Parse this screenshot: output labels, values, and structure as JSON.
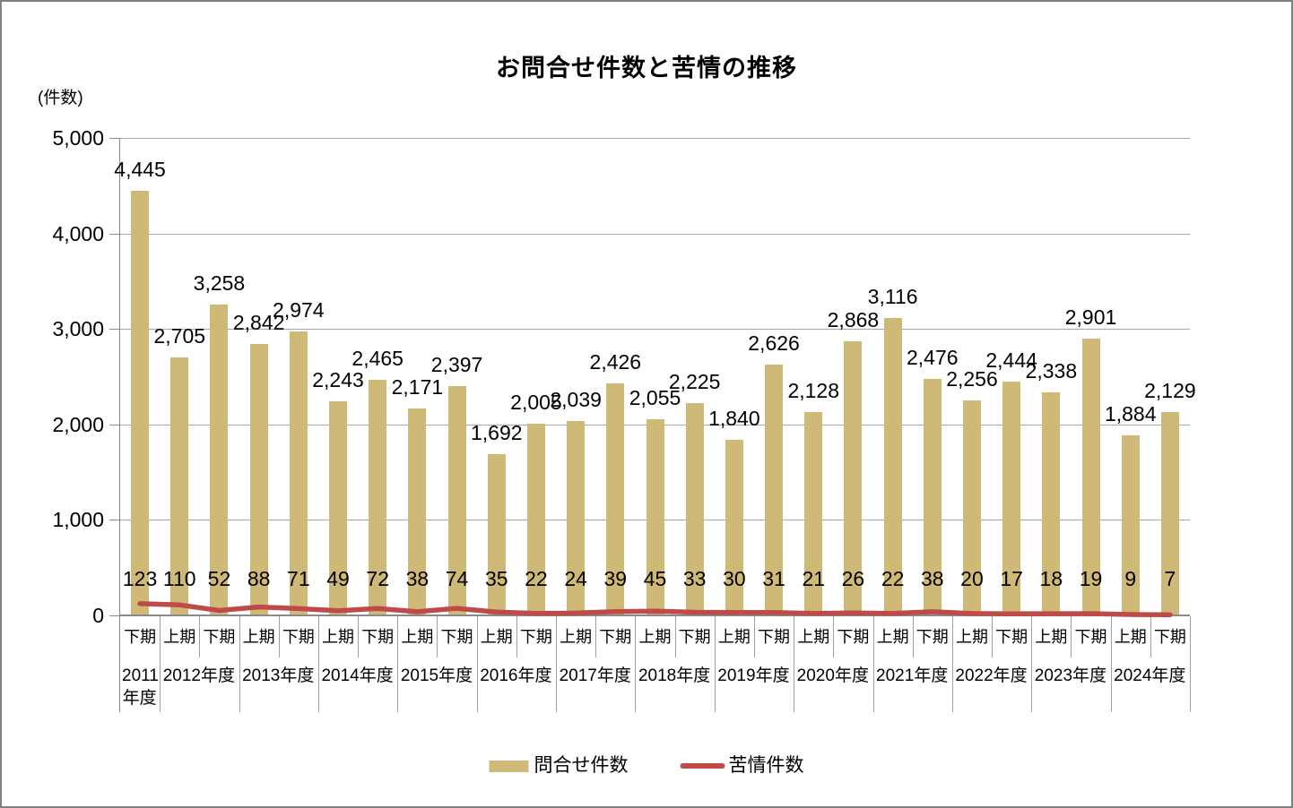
{
  "title": "お問合せ件数と苦情の推移",
  "y_axis_unit": "(件数)",
  "legend": {
    "bar_label": "問合せ件数",
    "line_label": "苦情件数"
  },
  "colors": {
    "bar": "#CFB977",
    "line": "#BE4B48",
    "gridline": "#A6A6A6",
    "axis": "#8A8A8A",
    "category_line": "#A0A0A0"
  },
  "chart_data": {
    "type": "bar",
    "combo": "bar+line",
    "title": "お問合せ件数と苦情の推移",
    "ylabel": "(件数)",
    "ylim": [
      0,
      5000
    ],
    "ytick_interval": 1000,
    "grid": true,
    "legend_position": "bottom",
    "x_periods": [
      "下期",
      "上期",
      "下期",
      "上期",
      "下期",
      "上期",
      "下期",
      "上期",
      "下期",
      "上期",
      "下期",
      "上期",
      "下期",
      "上期",
      "下期",
      "上期",
      "下期",
      "上期",
      "下期",
      "上期",
      "下期",
      "上期",
      "下期",
      "上期",
      "下期",
      "上期",
      "下期"
    ],
    "x_year_groups": [
      {
        "label": "2011年度",
        "span": 1
      },
      {
        "label": "2012年度",
        "span": 2
      },
      {
        "label": "2013年度",
        "span": 2
      },
      {
        "label": "2014年度",
        "span": 2
      },
      {
        "label": "2015年度",
        "span": 2
      },
      {
        "label": "2016年度",
        "span": 2
      },
      {
        "label": "2017年度",
        "span": 2
      },
      {
        "label": "2018年度",
        "span": 2
      },
      {
        "label": "2019年度",
        "span": 2
      },
      {
        "label": "2020年度",
        "span": 2
      },
      {
        "label": "2021年度",
        "span": 2
      },
      {
        "label": "2022年度",
        "span": 2
      },
      {
        "label": "2023年度",
        "span": 2
      },
      {
        "label": "2024年度",
        "span": 2
      }
    ],
    "series": [
      {
        "name": "問合せ件数",
        "type": "bar",
        "color": "#CFB977",
        "values": [
          4445,
          2705,
          3258,
          2842,
          2974,
          2243,
          2465,
          2171,
          2397,
          1692,
          2005,
          2039,
          2426,
          2055,
          2225,
          1840,
          2626,
          2128,
          2868,
          3116,
          2476,
          2256,
          2444,
          2338,
          2901,
          1884,
          2129
        ]
      },
      {
        "name": "苦情件数",
        "type": "line",
        "color": "#BE4B48",
        "values": [
          123,
          110,
          52,
          88,
          71,
          49,
          72,
          38,
          74,
          35,
          22,
          24,
          39,
          45,
          33,
          30,
          31,
          21,
          26,
          22,
          38,
          20,
          17,
          18,
          19,
          9,
          7
        ]
      }
    ]
  }
}
